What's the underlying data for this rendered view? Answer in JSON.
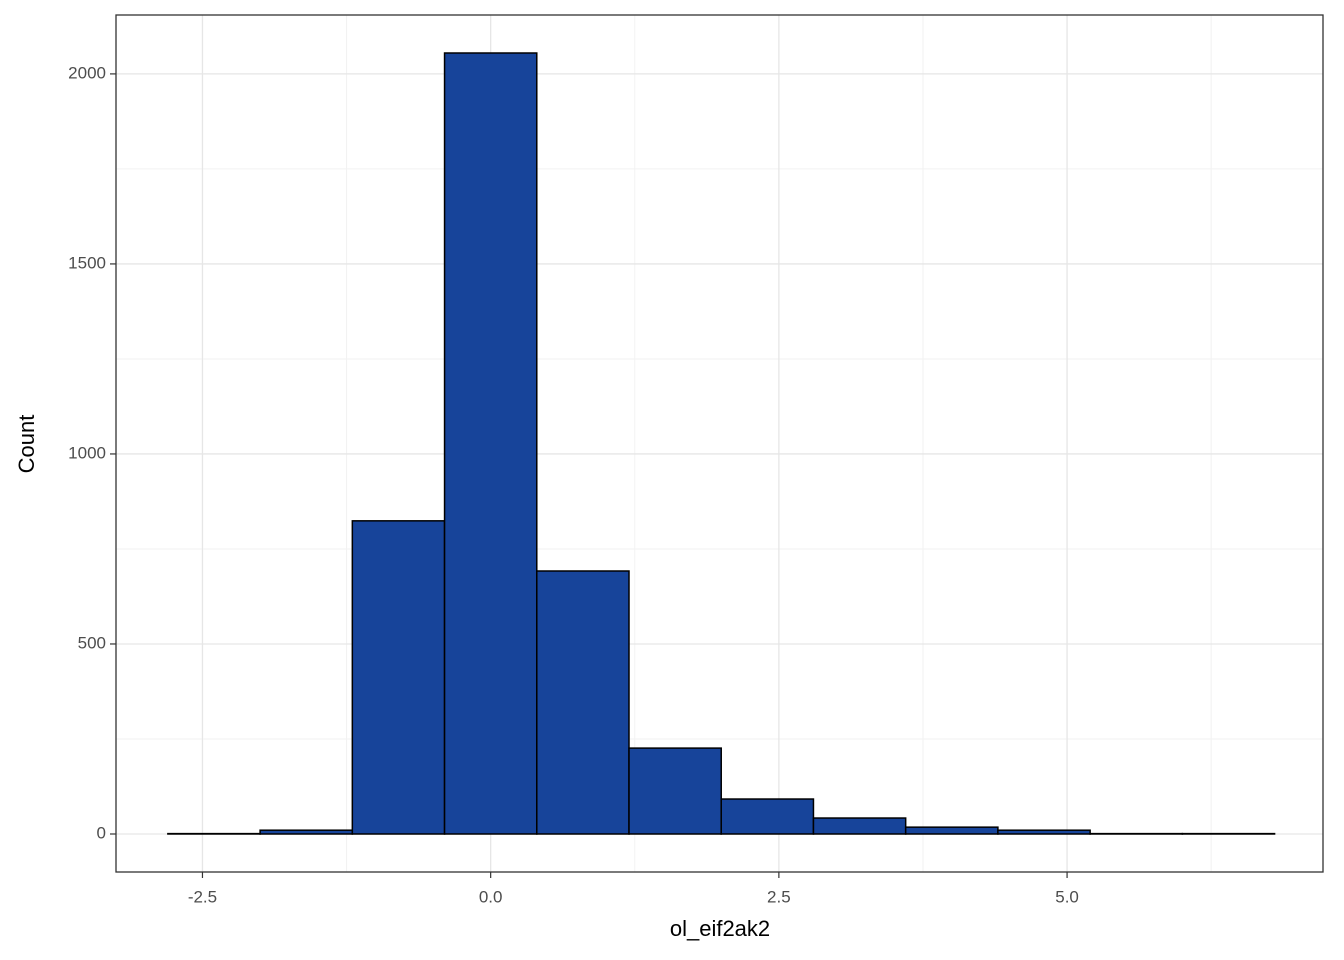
{
  "chart_data": {
    "type": "histogram",
    "xlabel": "ol_eif2ak2",
    "ylabel": "Count",
    "bins": [
      -2.8,
      -2.0,
      -1.2,
      -0.4,
      0.4,
      1.2,
      2.0,
      2.8,
      3.6,
      4.4,
      5.2,
      6.0,
      6.8
    ],
    "counts": [
      1,
      10,
      824,
      2055,
      692,
      226,
      92,
      42,
      18,
      10,
      1,
      1
    ],
    "color": "#17449a",
    "xlim": [
      -3.25,
      7.22
    ],
    "ylim": [
      -100,
      2155
    ],
    "xticks": [
      {
        "value": -2.5,
        "label": "-2.5"
      },
      {
        "value": 0,
        "label": "0.0"
      },
      {
        "value": 2.5,
        "label": "2.5"
      },
      {
        "value": 5,
        "label": "5.0"
      }
    ],
    "yticks": [
      0,
      500,
      1000,
      1500,
      2000
    ],
    "grid": true
  }
}
